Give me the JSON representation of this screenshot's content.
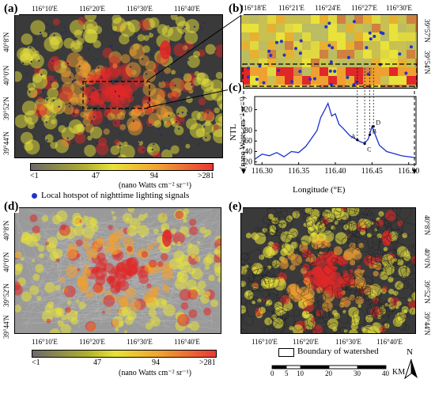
{
  "panels": {
    "a": {
      "label": "(a)",
      "top_ticks": [
        "116°10'E",
        "116°20'E",
        "116°30'E",
        "116°40'E"
      ],
      "right_ticks": [
        "40°8'N",
        "40°0'N",
        "39°52'N",
        "39°44'N"
      ]
    },
    "b": {
      "label": "(b)",
      "top_ticks": [
        "116°18'E",
        "116°21'E",
        "116°24'E",
        "116°27'E",
        "116°30'E"
      ],
      "right_ticks": [
        "39°57'N",
        "39°54'N"
      ]
    },
    "c": {
      "label": "(c)",
      "ylabel": "NTL",
      "ylabel_unit": "(nano Watts cm⁻² sr⁻¹)",
      "xlabel": "Longitude (°E)",
      "xticks": [
        "116.30",
        "116.35",
        "116.40",
        "116.45",
        "116.50"
      ],
      "yticks": [
        "20",
        "40",
        "60",
        "80",
        "120"
      ],
      "point_labels": [
        "A",
        "B",
        "C",
        "D"
      ]
    },
    "d": {
      "label": "(d)",
      "bottom_ticks": [
        "116°10'E",
        "116°20'E",
        "116°30'E",
        "116°40'E"
      ],
      "left_ticks": [
        "40°8'N",
        "40°0'N",
        "39°52'N",
        "39°44'N"
      ]
    },
    "e": {
      "label": "(e)",
      "bottom_ticks": [
        "116°10'E",
        "116°20'E",
        "116°30'E",
        "116°40'E"
      ],
      "right_ticks": [
        "40°8'N",
        "40°0'N",
        "39°52'N",
        "39°44'N"
      ]
    }
  },
  "colorbar_top": {
    "labels": [
      "<1",
      "47",
      "94",
      ">281"
    ],
    "unit": "(nano Watts cm⁻² sr⁻¹)"
  },
  "colorbar_bottom": {
    "labels": [
      "<1",
      "47",
      "94",
      ">281"
    ],
    "unit": "(nano Watts cm⁻² sr⁻¹)"
  },
  "legend_hotspot": "Local hotspot of nighttime lighting signals",
  "legend_watershed": "Boundary of watershed",
  "scalebar": {
    "labels": [
      "0",
      "5",
      "10",
      "20",
      "30",
      "40"
    ],
    "unit": "KM"
  },
  "north": "N",
  "colors": {
    "dark": "#3c3c3c",
    "yellow": "#e8e23a",
    "orange": "#f0a030",
    "red": "#e02828",
    "hotspot": "#2233cc",
    "profile": "#1a2fd0"
  },
  "chart_data": {
    "type": "line",
    "xlabel": "Longitude (°E)",
    "ylabel": "NTL (nano Watts cm⁻² sr⁻¹)",
    "xlim": [
      116.29,
      116.51
    ],
    "ylim": [
      15,
      145
    ],
    "x": [
      116.29,
      116.3,
      116.31,
      116.32,
      116.33,
      116.34,
      116.35,
      116.36,
      116.37,
      116.375,
      116.38,
      116.385,
      116.39,
      116.395,
      116.4,
      116.405,
      116.41,
      116.42,
      116.43,
      116.435,
      116.44,
      116.445,
      116.45,
      116.455,
      116.46,
      116.47,
      116.48,
      116.49,
      116.5,
      116.51
    ],
    "y": [
      25,
      35,
      32,
      38,
      30,
      40,
      38,
      50,
      70,
      80,
      105,
      118,
      132,
      108,
      112,
      92,
      85,
      70,
      62,
      58,
      56,
      64,
      88,
      70,
      52,
      40,
      36,
      32,
      30,
      28
    ],
    "points": [
      {
        "label": "A",
        "x": 116.43,
        "y": 62
      },
      {
        "label": "B",
        "x": 116.447,
        "y": 72
      },
      {
        "label": "C",
        "x": 116.44,
        "y": 55
      },
      {
        "label": "D",
        "x": 116.452,
        "y": 88
      }
    ]
  }
}
